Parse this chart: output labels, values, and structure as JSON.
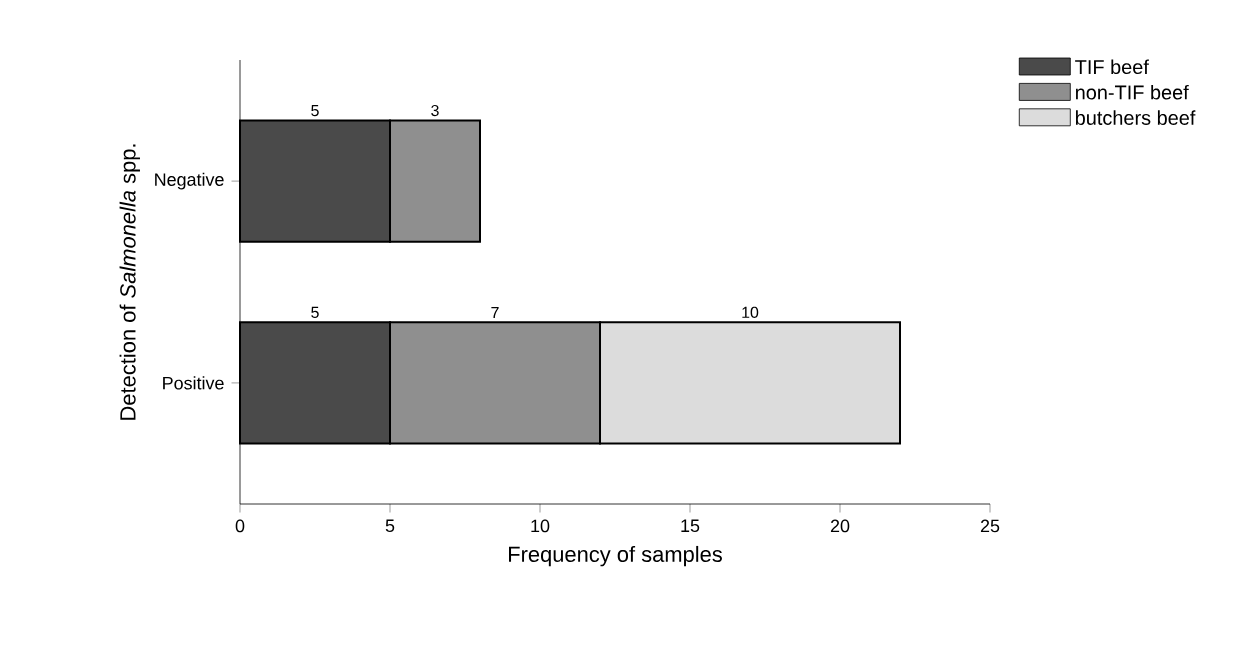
{
  "chart_data": {
    "type": "bar",
    "orientation": "horizontal",
    "stacked": true,
    "categories": [
      "Negative",
      "Positive"
    ],
    "series": [
      {
        "name": "TIF beef",
        "color": "#4a4a4a",
        "values": [
          5,
          5
        ]
      },
      {
        "name": "non-TIF beef",
        "color": "#8f8f8f",
        "values": [
          3,
          7
        ]
      },
      {
        "name": "butchers beef",
        "color": "#dcdcdc",
        "values": [
          null,
          10
        ]
      }
    ],
    "xlabel": "Frequency of samples",
    "ylabel": "Detection of *Salmonella* spp.",
    "xlim": [
      0,
      25
    ],
    "xticks": [
      0,
      5,
      10,
      15,
      20,
      25
    ],
    "data_labels": true,
    "legend": "top right",
    "grid": false
  }
}
